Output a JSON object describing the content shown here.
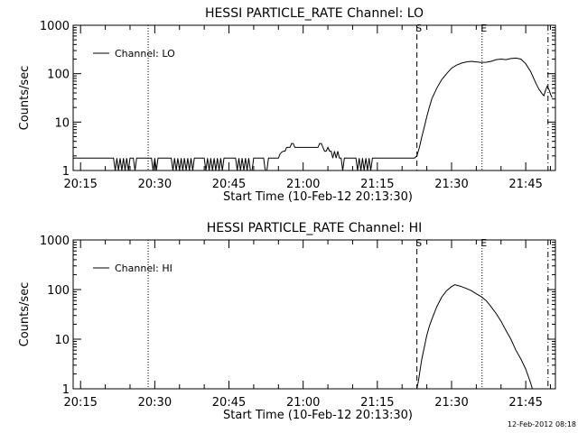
{
  "footer": {
    "timestamp": "12-Feb-2012 08:18"
  },
  "chart_data": [
    {
      "type": "line",
      "title": "HESSI PARTICLE_RATE Channel: LO",
      "xlabel": "Start Time (10-Feb-12 20:13:30)",
      "ylabel": "Counts/sec",
      "x_unit": "time (HH:MM, 10-Feb-12)",
      "xlim": [
        "20:13:30",
        "21:51:00"
      ],
      "ylim": [
        1,
        1000
      ],
      "yscale": "log",
      "xticks": [
        "20:15",
        "20:30",
        "20:45",
        "21:00",
        "21:15",
        "21:30",
        "21:45"
      ],
      "yticks": [
        "1",
        "10",
        "100",
        "1000"
      ],
      "grid": false,
      "legend": {
        "position": "top-left",
        "entries": [
          "Channel: LO"
        ]
      },
      "markers": [
        {
          "time": "20:28:40",
          "style": "dotted",
          "label": ""
        },
        {
          "time": "21:23:00",
          "style": "dashed",
          "label": "S"
        },
        {
          "time": "21:36:10",
          "style": "dotted",
          "label": "E"
        },
        {
          "time": "21:49:30",
          "style": "dash-dot",
          "label": ""
        }
      ],
      "series": [
        {
          "name": "Channel: LO",
          "points": [
            [
              "20:13:30",
              1.8
            ],
            [
              "20:21:40",
              1.8
            ],
            [
              "20:22:00",
              1
            ],
            [
              "20:22:20",
              1.8
            ],
            [
              "20:22:40",
              1
            ],
            [
              "20:23:00",
              1.8
            ],
            [
              "20:23:20",
              1
            ],
            [
              "20:23:40",
              1.8
            ],
            [
              "20:24:00",
              1
            ],
            [
              "20:24:20",
              1.8
            ],
            [
              "20:24:40",
              1
            ],
            [
              "20:25:00",
              1.8
            ],
            [
              "20:25:40",
              1.8
            ],
            [
              "20:26:00",
              1
            ],
            [
              "20:26:20",
              1.8
            ],
            [
              "20:29:20",
              1.8
            ],
            [
              "20:29:40",
              1
            ],
            [
              "20:30:00",
              1.8
            ],
            [
              "20:30:20",
              1
            ],
            [
              "20:30:40",
              1.8
            ],
            [
              "20:33:20",
              1.8
            ],
            [
              "20:33:40",
              1
            ],
            [
              "20:34:00",
              1.8
            ],
            [
              "20:34:20",
              1
            ],
            [
              "20:34:40",
              1.8
            ],
            [
              "20:35:00",
              1
            ],
            [
              "20:35:20",
              1.8
            ],
            [
              "20:35:40",
              1
            ],
            [
              "20:36:00",
              1.8
            ],
            [
              "20:36:20",
              1
            ],
            [
              "20:36:40",
              1.8
            ],
            [
              "20:37:00",
              1
            ],
            [
              "20:37:20",
              1.8
            ],
            [
              "20:37:40",
              1
            ],
            [
              "20:38:00",
              1.8
            ],
            [
              "20:40:00",
              1.8
            ],
            [
              "20:40:20",
              1
            ],
            [
              "20:40:40",
              1.8
            ],
            [
              "20:41:00",
              1
            ],
            [
              "20:41:20",
              1.8
            ],
            [
              "20:41:40",
              1
            ],
            [
              "20:42:00",
              1.8
            ],
            [
              "20:42:20",
              1
            ],
            [
              "20:42:40",
              1.8
            ],
            [
              "20:43:00",
              1
            ],
            [
              "20:43:20",
              1.8
            ],
            [
              "20:43:40",
              1
            ],
            [
              "20:44:00",
              1.8
            ],
            [
              "20:46:20",
              1.8
            ],
            [
              "20:46:40",
              1
            ],
            [
              "20:47:00",
              1.8
            ],
            [
              "20:47:20",
              1
            ],
            [
              "20:47:40",
              1.8
            ],
            [
              "20:48:00",
              1
            ],
            [
              "20:48:20",
              1.8
            ],
            [
              "20:48:40",
              1
            ],
            [
              "20:49:00",
              1.8
            ],
            [
              "20:49:20",
              1
            ],
            [
              "20:49:40",
              1
            ],
            [
              "20:50:00",
              1.8
            ],
            [
              "20:52:00",
              1.8
            ],
            [
              "20:52:20",
              1
            ],
            [
              "20:52:40",
              1
            ],
            [
              "20:53:00",
              1.8
            ],
            [
              "20:55:00",
              1.8
            ],
            [
              "20:55:20",
              2.2
            ],
            [
              "20:55:40",
              2.4
            ],
            [
              "20:56:00",
              2.5
            ],
            [
              "20:56:20",
              2.5
            ],
            [
              "20:56:40",
              3.0
            ],
            [
              "20:57:00",
              3.0
            ],
            [
              "20:57:20",
              3.0
            ],
            [
              "20:57:40",
              3.6
            ],
            [
              "20:58:00",
              3.6
            ],
            [
              "20:58:20",
              3.0
            ],
            [
              "20:58:40",
              3.0
            ],
            [
              "20:59:00",
              3.0
            ],
            [
              "21:00:00",
              3.0
            ],
            [
              "21:01:00",
              3.0
            ],
            [
              "21:02:00",
              3.0
            ],
            [
              "21:03:00",
              3.0
            ],
            [
              "21:03:20",
              3.6
            ],
            [
              "21:03:40",
              3.6
            ],
            [
              "21:04:00",
              3.0
            ],
            [
              "21:04:20",
              2.5
            ],
            [
              "21:04:40",
              2.5
            ],
            [
              "21:05:00",
              3.0
            ],
            [
              "21:05:20",
              2.5
            ],
            [
              "21:05:40",
              2.5
            ],
            [
              "21:06:00",
              1.8
            ],
            [
              "21:06:20",
              2.5
            ],
            [
              "21:06:40",
              1.8
            ],
            [
              "21:07:00",
              2.5
            ],
            [
              "21:07:20",
              1.8
            ],
            [
              "21:07:40",
              1.8
            ],
            [
              "21:08:00",
              1
            ],
            [
              "21:08:20",
              1.8
            ],
            [
              "21:10:40",
              1.8
            ],
            [
              "21:11:00",
              1
            ],
            [
              "21:11:20",
              1.8
            ],
            [
              "21:11:40",
              1
            ],
            [
              "21:12:00",
              1.8
            ],
            [
              "21:12:20",
              1
            ],
            [
              "21:12:40",
              1.8
            ],
            [
              "21:13:00",
              1
            ],
            [
              "21:13:20",
              1.8
            ],
            [
              "21:13:40",
              1
            ],
            [
              "21:14:00",
              1.8
            ],
            [
              "21:22:30",
              1.8
            ],
            [
              "21:23:00",
              2
            ],
            [
              "21:23:30",
              3
            ],
            [
              "21:24:00",
              5
            ],
            [
              "21:24:30",
              8
            ],
            [
              "21:25:00",
              13
            ],
            [
              "21:25:30",
              20
            ],
            [
              "21:26:00",
              30
            ],
            [
              "21:27:00",
              50
            ],
            [
              "21:28:00",
              75
            ],
            [
              "21:29:00",
              100
            ],
            [
              "21:30:00",
              130
            ],
            [
              "21:31:00",
              150
            ],
            [
              "21:32:00",
              165
            ],
            [
              "21:33:00",
              175
            ],
            [
              "21:34:00",
              180
            ],
            [
              "21:35:00",
              175
            ],
            [
              "21:36:00",
              170
            ],
            [
              "21:37:00",
              172
            ],
            [
              "21:38:00",
              180
            ],
            [
              "21:39:00",
              195
            ],
            [
              "21:40:00",
              200
            ],
            [
              "21:41:00",
              195
            ],
            [
              "21:42:00",
              205
            ],
            [
              "21:43:00",
              210
            ],
            [
              "21:44:00",
              200
            ],
            [
              "21:45:00",
              160
            ],
            [
              "21:46:00",
              110
            ],
            [
              "21:47:00",
              65
            ],
            [
              "21:47:40",
              48
            ],
            [
              "21:48:20",
              38
            ],
            [
              "21:48:40",
              35
            ],
            [
              "21:49:00",
              45
            ],
            [
              "21:49:20",
              55
            ],
            [
              "21:49:40",
              48
            ],
            [
              "21:50:00",
              38
            ],
            [
              "21:50:20",
              32
            ]
          ]
        }
      ]
    },
    {
      "type": "line",
      "title": "HESSI PARTICLE_RATE Channel: HI",
      "xlabel": "Start Time (10-Feb-12 20:13:30)",
      "ylabel": "Counts/sec",
      "x_unit": "time (HH:MM, 10-Feb-12)",
      "xlim": [
        "20:13:30",
        "21:51:00"
      ],
      "ylim": [
        1,
        1000
      ],
      "yscale": "log",
      "xticks": [
        "20:15",
        "20:30",
        "20:45",
        "21:00",
        "21:15",
        "21:30",
        "21:45"
      ],
      "yticks": [
        "1",
        "10",
        "100",
        "1000"
      ],
      "grid": false,
      "legend": {
        "position": "top-left",
        "entries": [
          "Channel: HI"
        ]
      },
      "markers": [
        {
          "time": "20:28:40",
          "style": "dotted",
          "label": ""
        },
        {
          "time": "21:23:00",
          "style": "dashed",
          "label": "S"
        },
        {
          "time": "21:36:10",
          "style": "dotted",
          "label": "E"
        },
        {
          "time": "21:49:30",
          "style": "dash-dot",
          "label": ""
        }
      ],
      "series": [
        {
          "name": "Channel: HI",
          "points": [
            [
              "21:23:00",
              1
            ],
            [
              "21:23:20",
              1.5
            ],
            [
              "21:23:40",
              2.5
            ],
            [
              "21:24:00",
              4
            ],
            [
              "21:24:30",
              7
            ],
            [
              "21:25:00",
              12
            ],
            [
              "21:25:30",
              18
            ],
            [
              "21:26:00",
              25
            ],
            [
              "21:27:00",
              45
            ],
            [
              "21:28:00",
              70
            ],
            [
              "21:29:00",
              95
            ],
            [
              "21:30:00",
              115
            ],
            [
              "21:30:40",
              125
            ],
            [
              "21:31:20",
              120
            ],
            [
              "21:32:00",
              115
            ],
            [
              "21:33:00",
              105
            ],
            [
              "21:34:00",
              95
            ],
            [
              "21:35:00",
              82
            ],
            [
              "21:36:00",
              72
            ],
            [
              "21:37:00",
              60
            ],
            [
              "21:38:00",
              45
            ],
            [
              "21:39:00",
              33
            ],
            [
              "21:40:00",
              23
            ],
            [
              "21:41:00",
              15
            ],
            [
              "21:42:00",
              10
            ],
            [
              "21:43:00",
              6
            ],
            [
              "21:44:00",
              4
            ],
            [
              "21:45:00",
              2.5
            ],
            [
              "21:45:30",
              1.8
            ],
            [
              "21:46:00",
              1.3
            ],
            [
              "21:46:20",
              1
            ]
          ]
        }
      ]
    }
  ]
}
